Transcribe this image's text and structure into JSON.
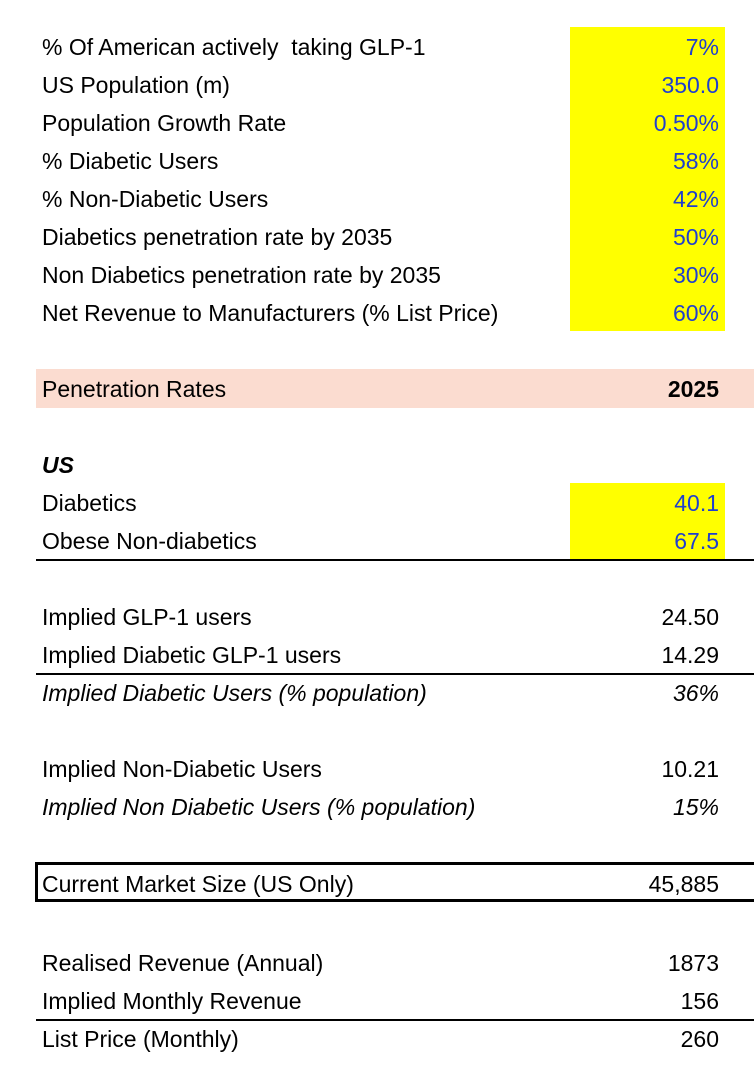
{
  "assumptions": [
    {
      "label": "% Of American actively  taking GLP-1",
      "value": "7%"
    },
    {
      "label": "US Population (m)",
      "value": "350.0"
    },
    {
      "label": "Population Growth Rate",
      "value": "0.50%"
    },
    {
      "label": "% Diabetic Users",
      "value": "58%"
    },
    {
      "label": "% Non-Diabetic Users",
      "value": "42%"
    },
    {
      "label": "Diabetics penetration rate by 2035",
      "value": "50%"
    },
    {
      "label": "Non Diabetics penetration rate by 2035",
      "value": "30%"
    },
    {
      "label": "Net Revenue to Manufacturers (% List Price)",
      "value": "60%"
    }
  ],
  "penetration": {
    "label": "Penetration Rates",
    "year": "2025"
  },
  "us": {
    "heading": "US",
    "diabetics": {
      "label": "Diabetics",
      "value": "40.1"
    },
    "obese": {
      "label": "Obese Non-diabetics",
      "value": "67.5"
    }
  },
  "implied": {
    "glp1_users": {
      "label": "Implied GLP-1 users",
      "value": "24.50"
    },
    "diabetic_users": {
      "label": "Implied Diabetic GLP-1 users",
      "value": "14.29"
    },
    "diabetic_pct": {
      "label": "Implied Diabetic Users (% population)",
      "value": "36%"
    },
    "non_diabetic_users": {
      "label": "Implied Non-Diabetic Users",
      "value": "10.21"
    },
    "non_diabetic_pct": {
      "label": "Implied Non Diabetic Users (% population)",
      "value": "15%"
    }
  },
  "market": {
    "label": "Current Market Size (US Only)",
    "value": "45,885"
  },
  "revenue": {
    "annual": {
      "label": "Realised Revenue (Annual)",
      "value": "1873"
    },
    "monthly": {
      "label": "Implied Monthly Revenue",
      "value": "156"
    },
    "list_price": {
      "label": "List Price (Monthly)",
      "value": "260"
    }
  },
  "colors": {
    "input_fill": "#ffff00",
    "input_text": "#1f3fcf",
    "header_fill": "#fbdcd0"
  }
}
